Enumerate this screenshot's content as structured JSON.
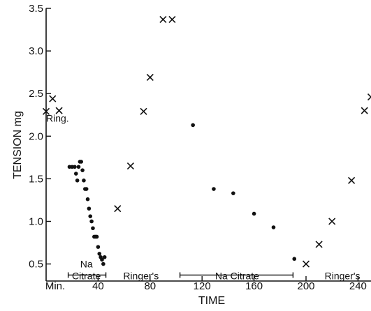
{
  "chart_data": {
    "type": "scatter",
    "xlabel": "TIME",
    "ylabel": "TENSION mg",
    "x_origin_label": "Min.",
    "xlim": [
      0,
      250
    ],
    "ylim": [
      0.3,
      3.5
    ],
    "x_ticks": [
      {
        "value": 40,
        "label": "40"
      },
      {
        "value": 80,
        "label": "80"
      },
      {
        "value": 120,
        "label": "120"
      },
      {
        "value": 160,
        "label": "160"
      },
      {
        "value": 200,
        "label": "200"
      },
      {
        "value": 240,
        "label": "240"
      }
    ],
    "y_ticks": [
      {
        "value": 0.5,
        "label": "0.5"
      },
      {
        "value": 1.0,
        "label": "1.0"
      },
      {
        "value": 1.5,
        "label": "1.5"
      },
      {
        "value": 2.0,
        "label": "2.0"
      },
      {
        "value": 2.5,
        "label": "2.5"
      },
      {
        "value": 3.0,
        "label": "3.0"
      },
      {
        "value": 3.5,
        "label": "3.5"
      }
    ],
    "series": [
      {
        "marker": "x",
        "points": [
          {
            "x": 0,
            "y": 2.29
          },
          {
            "x": 5,
            "y": 2.44
          },
          {
            "x": 10,
            "y": 2.3
          },
          {
            "x": 55,
            "y": 1.15
          },
          {
            "x": 65,
            "y": 1.65
          },
          {
            "x": 75,
            "y": 2.29
          },
          {
            "x": 80,
            "y": 2.69
          },
          {
            "x": 90,
            "y": 3.37
          },
          {
            "x": 97,
            "y": 3.37
          },
          {
            "x": 200,
            "y": 0.5
          },
          {
            "x": 210,
            "y": 0.73
          },
          {
            "x": 220,
            "y": 1.0
          },
          {
            "x": 235,
            "y": 1.48
          },
          {
            "x": 245,
            "y": 2.3
          },
          {
            "x": 250,
            "y": 2.46
          }
        ]
      },
      {
        "marker": "dot",
        "points": [
          {
            "x": 18,
            "y": 1.64
          },
          {
            "x": 20,
            "y": 1.64
          },
          {
            "x": 22,
            "y": 1.64
          },
          {
            "x": 23,
            "y": 1.56
          },
          {
            "x": 24,
            "y": 1.48
          },
          {
            "x": 25,
            "y": 1.64
          },
          {
            "x": 26,
            "y": 1.7
          },
          {
            "x": 27,
            "y": 1.7
          },
          {
            "x": 28,
            "y": 1.6
          },
          {
            "x": 29,
            "y": 1.48
          },
          {
            "x": 30,
            "y": 1.38
          },
          {
            "x": 31,
            "y": 1.38
          },
          {
            "x": 32,
            "y": 1.26
          },
          {
            "x": 33,
            "y": 1.15
          },
          {
            "x": 34,
            "y": 1.06
          },
          {
            "x": 35,
            "y": 1.0
          },
          {
            "x": 36,
            "y": 0.92
          },
          {
            "x": 37,
            "y": 0.82
          },
          {
            "x": 38,
            "y": 0.82
          },
          {
            "x": 39,
            "y": 0.82
          },
          {
            "x": 40,
            "y": 0.7
          },
          {
            "x": 41,
            "y": 0.62
          },
          {
            "x": 42,
            "y": 0.58
          },
          {
            "x": 43,
            "y": 0.55
          },
          {
            "x": 44,
            "y": 0.5
          },
          {
            "x": 45,
            "y": 0.58
          },
          {
            "x": 113,
            "y": 2.13
          },
          {
            "x": 129,
            "y": 1.38
          },
          {
            "x": 144,
            "y": 1.33
          },
          {
            "x": 160,
            "y": 1.09
          },
          {
            "x": 175,
            "y": 0.93
          },
          {
            "x": 191,
            "y": 0.56
          }
        ]
      }
    ],
    "annotations": [
      {
        "text": "Ring.",
        "x": 0,
        "y": 2.17
      },
      {
        "text": "Na",
        "x": 31,
        "y": 0.46
      },
      {
        "text": "Citrate",
        "x": 31,
        "y": 0.32
      },
      {
        "text": "Ringer's",
        "x": 73,
        "y": 0.32
      },
      {
        "text": "Na Citrate",
        "x": 147,
        "y": 0.32
      },
      {
        "text": "Ringer's",
        "x": 228,
        "y": 0.32
      }
    ],
    "brackets": [
      {
        "x_start": 17,
        "x_end": 46,
        "y": 0.37
      },
      {
        "x_start": 103,
        "x_end": 190,
        "y": 0.37
      }
    ],
    "grid": false
  }
}
